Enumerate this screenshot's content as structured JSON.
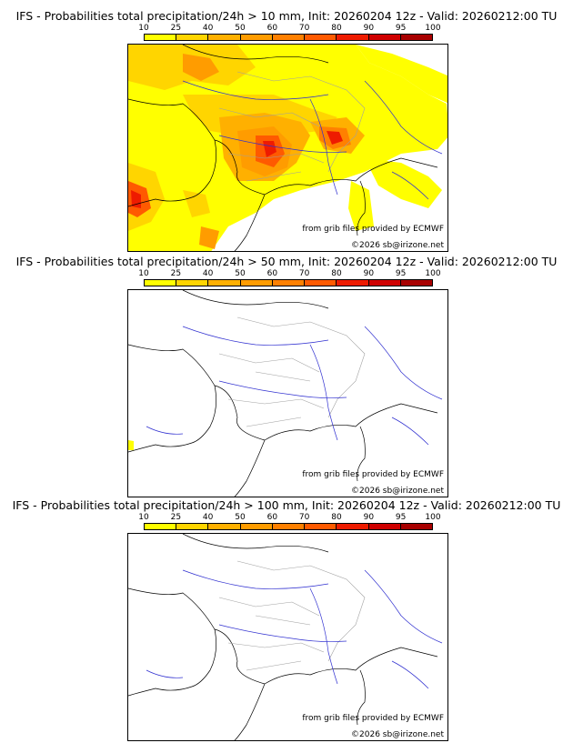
{
  "colorbar": {
    "ticks": [
      "10",
      "25",
      "40",
      "50",
      "60",
      "70",
      "80",
      "90",
      "95",
      "100"
    ],
    "colors": [
      "#ffff00",
      "#ffd500",
      "#ffb000",
      "#ff9c00",
      "#ff8000",
      "#ff5a00",
      "#ee1b00",
      "#cf0000",
      "#a80000",
      "#6e0000"
    ]
  },
  "panels": [
    {
      "title": "IFS - Probabilities total precipitation/24h > 10 mm, Init: 20260204 12z - Valid: 20260212:00 TU",
      "credit_source": "from grib files provided by ECMWF",
      "credit_copyright": "©2026 sb@irizone.net",
      "extent": "heavy"
    },
    {
      "title": "IFS - Probabilities total precipitation/24h > 50 mm, Init: 20260204 12z - Valid: 20260212:00 TU",
      "credit_source": "from grib files provided by ECMWF",
      "credit_copyright": "©2026 sb@irizone.net",
      "extent": "minimal"
    },
    {
      "title": "IFS - Probabilities total precipitation/24h > 100 mm, Init: 20260204 12z - Valid: 20260212:00 TU",
      "credit_source": "from grib files provided by ECMWF",
      "credit_copyright": "©2026 sb@irizone.net",
      "extent": "none"
    }
  ],
  "colors": {
    "coast": "#000000",
    "rivers": "#3030d0",
    "borders": "#a0a0a0"
  }
}
